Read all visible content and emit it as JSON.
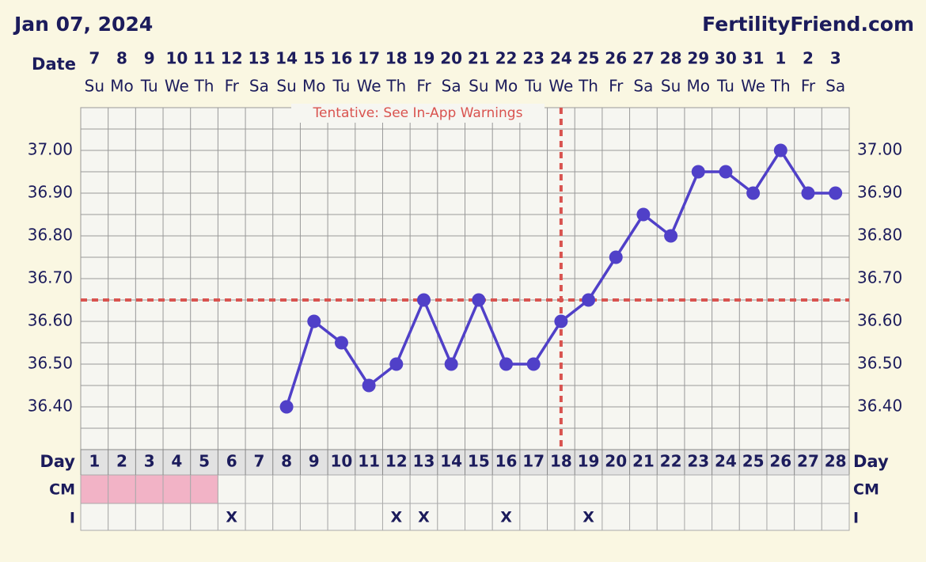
{
  "chart_data": {
    "type": "line",
    "title": "Jan 07, 2024",
    "brand": "FertilityFriend.com",
    "annotation": "Tentative: See In-App Warnings",
    "date_label": "Date",
    "dates": [
      7,
      8,
      9,
      10,
      11,
      12,
      13,
      14,
      15,
      16,
      17,
      18,
      19,
      20,
      21,
      22,
      23,
      24,
      25,
      26,
      27,
      28,
      29,
      30,
      31,
      1,
      2,
      3
    ],
    "weekdays": [
      "Su",
      "Mo",
      "Tu",
      "We",
      "Th",
      "Fr",
      "Sa",
      "Su",
      "Mo",
      "Tu",
      "We",
      "Th",
      "Fr",
      "Sa",
      "Su",
      "Mo",
      "Tu",
      "We",
      "Th",
      "Fr",
      "Sa",
      "Su",
      "Mo",
      "Tu",
      "We",
      "Th",
      "Fr",
      "Sa"
    ],
    "day_label": "Day",
    "categories": [
      1,
      2,
      3,
      4,
      5,
      6,
      7,
      8,
      9,
      10,
      11,
      12,
      13,
      14,
      15,
      16,
      17,
      18,
      19,
      20,
      21,
      22,
      23,
      24,
      25,
      26,
      27,
      28
    ],
    "values": [
      null,
      null,
      null,
      null,
      null,
      null,
      null,
      36.4,
      36.6,
      36.55,
      36.45,
      36.5,
      36.65,
      36.5,
      36.65,
      36.5,
      36.5,
      36.6,
      36.65,
      36.75,
      36.85,
      36.8,
      36.95,
      36.95,
      36.9,
      37.0,
      36.9,
      36.9
    ],
    "color": "#5040c8",
    "ylim": [
      36.3,
      37.1
    ],
    "yticks": [
      {
        "value": 36.4,
        "label": "36.40"
      },
      {
        "value": 36.5,
        "label": "36.50"
      },
      {
        "value": 36.6,
        "label": "36.60"
      },
      {
        "value": 36.7,
        "label": "36.70"
      },
      {
        "value": 36.8,
        "label": "36.80"
      },
      {
        "value": 36.9,
        "label": "36.90"
      },
      {
        "value": 37.0,
        "label": "37.00"
      }
    ],
    "grid": true,
    "coverline": 36.65,
    "ovulation_day": 18,
    "marker_color": "#d9534f",
    "cm_label": "CM",
    "cm_highlight_days": [
      1,
      2,
      3,
      4,
      5
    ],
    "cm_highlight_color": "#f2b3c6",
    "intercourse_label": "I",
    "intercourse": [
      null,
      null,
      null,
      null,
      null,
      "X",
      null,
      null,
      null,
      null,
      null,
      "X",
      "X",
      null,
      null,
      "X",
      null,
      null,
      "X",
      null,
      null,
      null,
      null,
      null,
      null,
      null,
      null,
      null
    ]
  }
}
